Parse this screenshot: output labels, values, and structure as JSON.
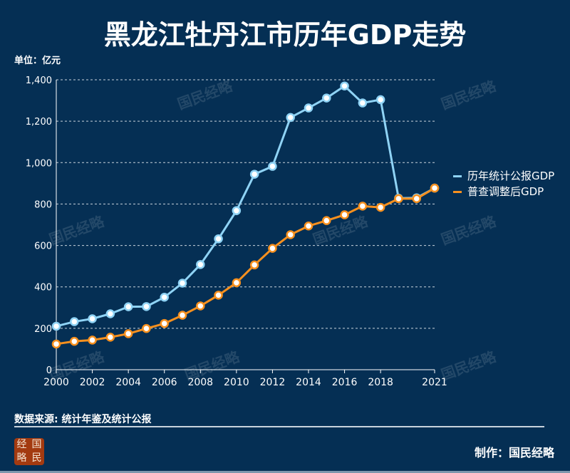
{
  "chart_data": {
    "type": "line",
    "title": "黑龙江牡丹江市历年GDP走势",
    "ylabel": "单位：亿元",
    "ylim": [
      0,
      1400
    ],
    "yticks": [
      "0",
      "200",
      "400",
      "600",
      "800",
      "1,000",
      "1,200",
      "1,400"
    ],
    "xticks": [
      "2000",
      "2002",
      "2004",
      "2006",
      "2008",
      "2010",
      "2012",
      "2014",
      "2016",
      "2018",
      "2021"
    ],
    "x": [
      2000,
      2001,
      2002,
      2003,
      2004,
      2005,
      2006,
      2007,
      2008,
      2009,
      2010,
      2011,
      2012,
      2013,
      2014,
      2015,
      2016,
      2017,
      2018,
      2019,
      2020,
      2021
    ],
    "grid": true,
    "legend": "right",
    "series": [
      {
        "name": "历年统计公报GDP",
        "color": "#8fd3f5",
        "values": [
          210,
          232,
          246,
          270,
          304,
          305,
          350,
          418,
          508,
          632,
          768,
          944,
          982,
          1218,
          1264,
          1312,
          1370,
          1288,
          1304,
          828,
          830,
          877
        ]
      },
      {
        "name": "普查调整后GDP",
        "color": "#f7901e",
        "values": [
          124,
          137,
          143,
          157,
          174,
          199,
          223,
          263,
          308,
          360,
          420,
          506,
          586,
          652,
          694,
          720,
          748,
          790,
          784,
          826,
          826,
          877
        ]
      }
    ]
  },
  "watermark": "国民经略",
  "source": "数据来源: 统计年鉴及统计公报",
  "maker": "制作：国民经略",
  "logo": [
    "经",
    "国",
    "略",
    "民"
  ]
}
